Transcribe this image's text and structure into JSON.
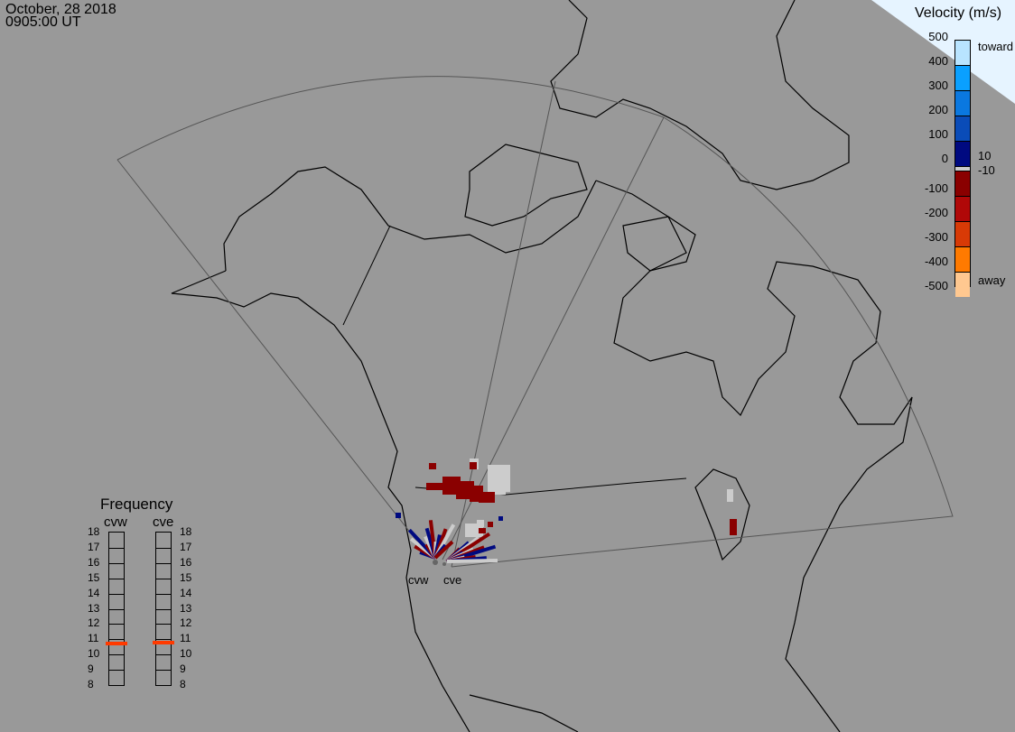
{
  "header": {
    "date": "October, 28 2018",
    "time": "0905:00 UT"
  },
  "colorbar": {
    "title": "Velocity (m/s)",
    "ticks": [
      "500",
      "400",
      "300",
      "200",
      "100",
      "0",
      "-100",
      "-200",
      "-300",
      "-400",
      "-500"
    ],
    "toward_label": "toward",
    "away_label": "away",
    "pos_threshold": "10",
    "neg_threshold": "-10",
    "colors_top_to_bottom": [
      "#b8e4ff",
      "#0aa0ff",
      "#0a78e0",
      "#0a4cb8",
      "#000a80",
      "#cccccc",
      "#8a0000",
      "#b00808",
      "#d83a06",
      "#ff7a00",
      "#ffc890"
    ]
  },
  "radars": [
    {
      "name": "cvw"
    },
    {
      "name": "cve"
    }
  ],
  "frequency": {
    "title": "Frequency",
    "ticks": [
      "18",
      "17",
      "16",
      "15",
      "14",
      "13",
      "12",
      "11",
      "10",
      "9",
      "8"
    ],
    "unit_range": [
      8,
      18
    ],
    "values_mhz": {
      "cvw": 10.7,
      "cve": 10.8
    },
    "marker_color": "#ff3a00"
  }
}
